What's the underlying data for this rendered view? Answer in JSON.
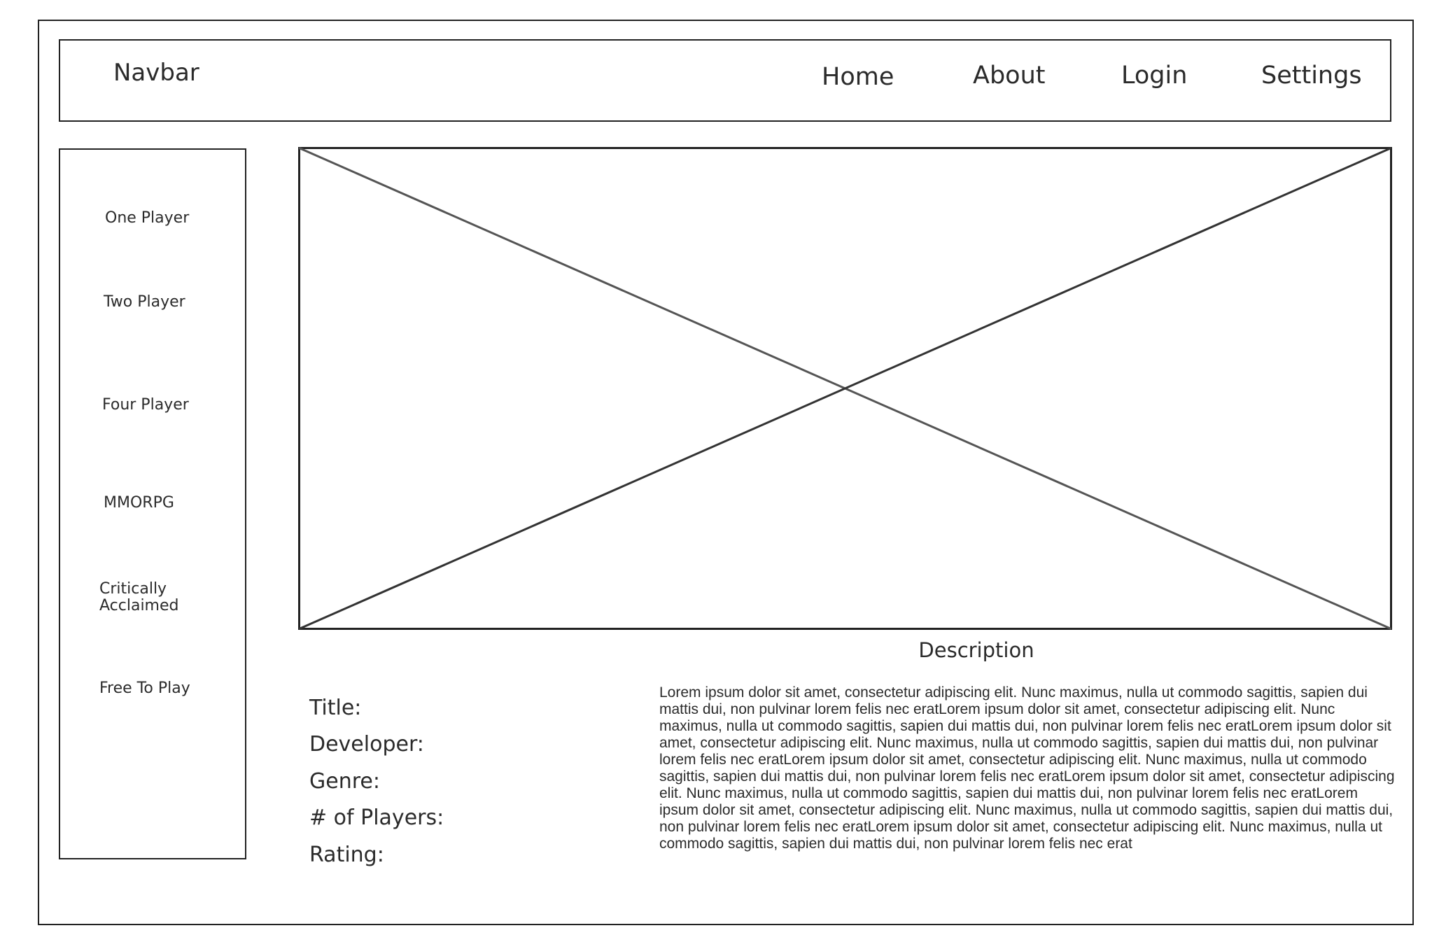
{
  "navbar": {
    "brand": "Navbar",
    "links": [
      "Home",
      "About",
      "Login",
      "Settings"
    ]
  },
  "sidebar": {
    "items": [
      "One Player",
      "Two Player",
      "Four Player",
      "MMORPG",
      "Critically Acclaimed",
      "Free To Play"
    ]
  },
  "hero": {
    "placeholder": "image-placeholder"
  },
  "details": {
    "fields": [
      "Title:",
      "Developer:",
      "Genre:",
      "# of Players:",
      "Rating:"
    ]
  },
  "description": {
    "heading": "Description",
    "text": "Lorem ipsum dolor sit amet, consectetur adipiscing elit. Nunc maximus, nulla ut commodo sagittis, sapien dui mattis dui, non pulvinar lorem felis nec eratLorem ipsum dolor sit amet, consectetur adipiscing elit. Nunc maximus, nulla ut commodo sagittis, sapien dui mattis dui, non pulvinar lorem felis nec eratLorem ipsum dolor sit amet, consectetur adipiscing elit. Nunc maximus, nulla ut commodo sagittis, sapien dui mattis dui, non pulvinar lorem felis nec eratLorem ipsum dolor sit amet, consectetur adipiscing elit. Nunc maximus, nulla ut commodo sagittis, sapien dui mattis dui, non pulvinar lorem felis nec eratLorem ipsum dolor sit amet, consectetur adipiscing elit. Nunc maximus, nulla ut commodo sagittis, sapien dui mattis dui, non pulvinar lorem felis nec eratLorem ipsum dolor sit amet, consectetur adipiscing elit. Nunc maximus, nulla ut commodo sagittis, sapien dui mattis dui, non pulvinar lorem felis nec eratLorem ipsum dolor sit amet, consectetur adipiscing elit. Nunc maximus, nulla ut commodo sagittis, sapien dui mattis dui, non pulvinar lorem felis nec erat"
  }
}
